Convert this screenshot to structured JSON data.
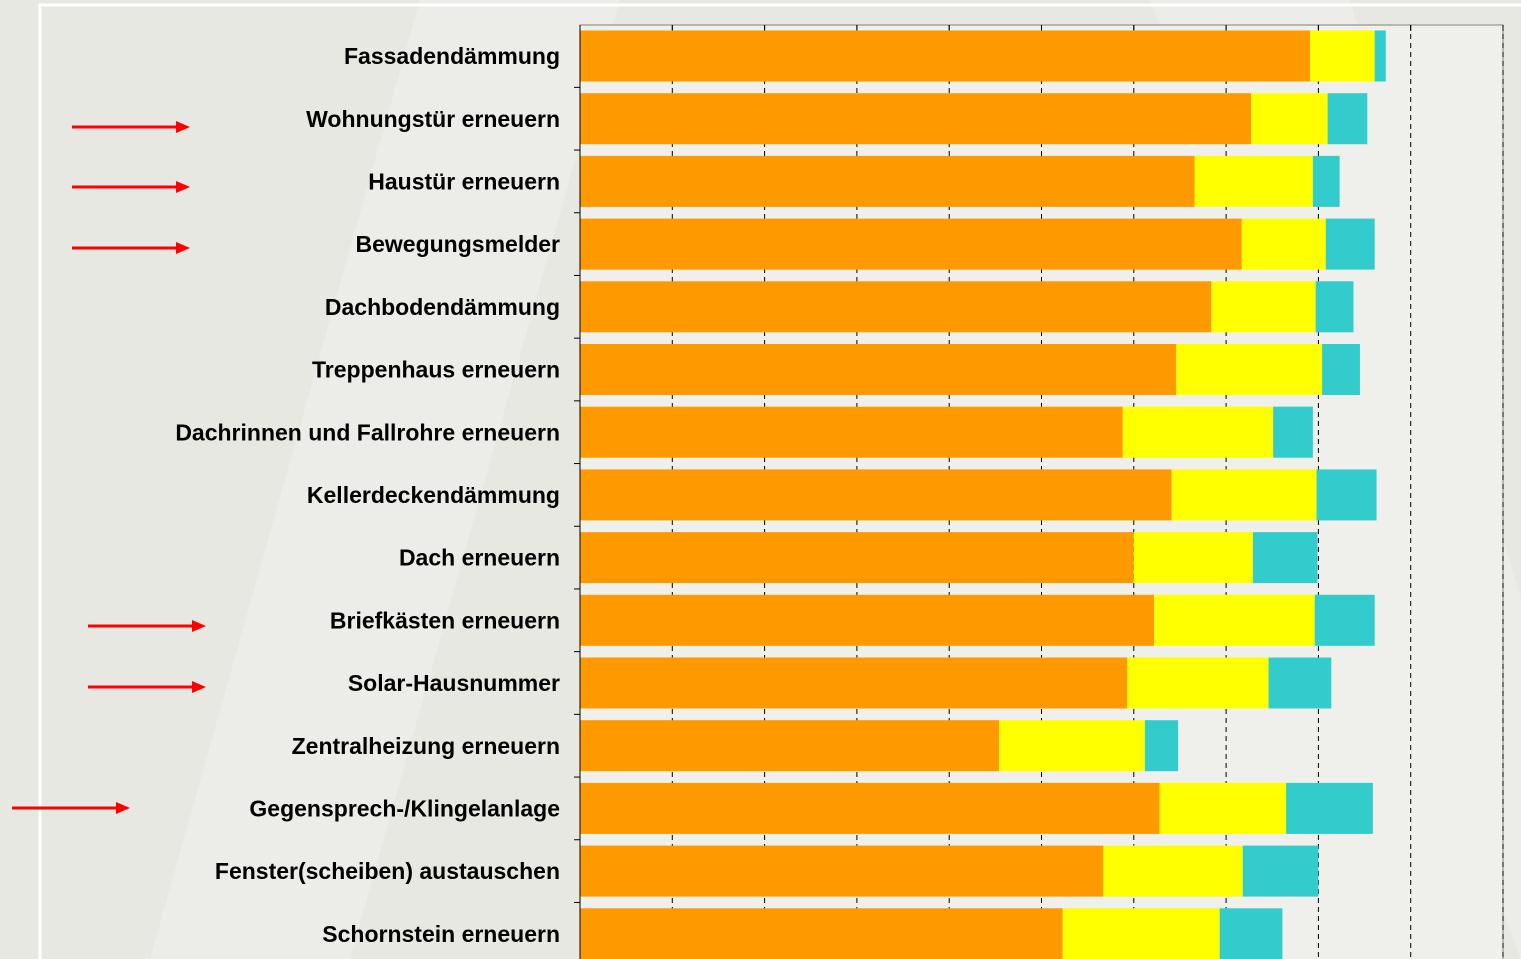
{
  "chart_data": {
    "type": "stacked_barh",
    "categories": [
      "Fassadendämmung",
      "Wohnungstür erneuern",
      "Haustür erneuern",
      "Bewegungsmelder",
      "Dachbodendämmung",
      "Treppenhaus erneuern",
      "Dachrinnen und Fallrohre erneuern",
      "Kellerdeckendämmung",
      "Dach erneuern",
      "Briefkästen erneuern",
      "Solar-Hausnummer",
      "Zentralheizung erneuern",
      "Gegensprech-/Klingelanlage",
      "Fenster(scheiben) austauschen",
      "Schornstein erneuern"
    ],
    "series": [
      {
        "color": "#ff9900",
        "values": [
          79.1,
          72.7,
          66.6,
          71.7,
          68.4,
          64.6,
          58.8,
          64.1,
          60.0,
          62.2,
          59.3,
          45.4,
          62.8,
          56.7,
          52.3
        ]
      },
      {
        "color": "#ffff00",
        "values": [
          7.0,
          8.3,
          12.8,
          9.1,
          11.3,
          15.8,
          16.3,
          15.7,
          12.9,
          17.4,
          15.3,
          15.8,
          13.7,
          15.1,
          17.0
        ]
      },
      {
        "color": "#33cccc",
        "values": [
          1.2,
          4.3,
          2.9,
          5.3,
          4.1,
          4.1,
          4.3,
          6.5,
          7.0,
          6.5,
          6.8,
          3.6,
          9.4,
          8.2,
          6.8
        ]
      }
    ],
    "xlim": [
      0,
      100
    ],
    "xticks": [
      0,
      10,
      20,
      30,
      40,
      50,
      60,
      70,
      80,
      90,
      100
    ],
    "grid": true
  }
}
